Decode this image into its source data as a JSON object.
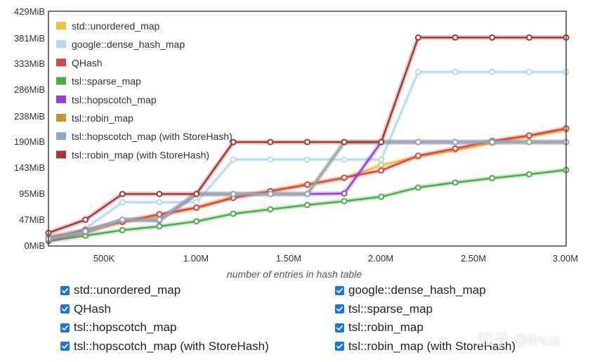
{
  "chart_data": {
    "type": "line",
    "xlabel": "number of entries in hash table",
    "ylabel": "",
    "xlim": [
      200000,
      3000000
    ],
    "ylim": [
      0,
      429
    ],
    "x_ticks": [
      500000,
      1000000,
      1500000,
      2000000,
      2500000,
      3000000
    ],
    "x_tick_labels": [
      "500K",
      "1.00M",
      "1.50M",
      "2.00M",
      "2.50M",
      "3.00M"
    ],
    "y_ticks": [
      0,
      47,
      95,
      143,
      190,
      238,
      286,
      333,
      381,
      429
    ],
    "y_tick_labels": [
      "0MiB",
      "47MiB",
      "95MiB",
      "143MiB",
      "190MiB",
      "238MiB",
      "286MiB",
      "333MiB",
      "381MiB",
      "429MiB"
    ],
    "grid": false,
    "legend_position": "top-left",
    "x": [
      200000,
      400000,
      600000,
      800000,
      1000000,
      1200000,
      1400000,
      1600000,
      1800000,
      2000000,
      2200000,
      2400000,
      2600000,
      2800000,
      3000000
    ],
    "series": [
      {
        "name": "std::unordered_map",
        "color": "#f0c040",
        "values": [
          18,
          28,
          45,
          55,
          70,
          90,
          101,
          113,
          124,
          148,
          163,
          175,
          188,
          200,
          212
        ]
      },
      {
        "name": "google::dense_hash_map",
        "color": "#b8d8f0",
        "values": [
          14,
          32,
          80,
          80,
          80,
          158,
          158,
          158,
          158,
          158,
          318,
          318,
          318,
          318,
          318
        ]
      },
      {
        "name": "QHash",
        "color": "#d04848",
        "values": [
          14,
          29,
          44,
          58,
          70,
          88,
          100,
          112,
          125,
          138,
          165,
          178,
          192,
          202,
          215
        ]
      },
      {
        "name": "tsl::sparse_map",
        "color": "#50a850",
        "values": [
          9,
          19,
          29,
          36,
          45,
          59,
          67,
          75,
          82,
          90,
          107,
          116,
          124,
          131,
          139
        ]
      },
      {
        "name": "tsl::hopscotch_map",
        "color": "#9040e0",
        "values": [
          10,
          25,
          48,
          47,
          95,
          95,
          95,
          95,
          96,
          190,
          190,
          190,
          190,
          190,
          190
        ]
      },
      {
        "name": "tsl::robin_map",
        "color": "#c09830",
        "values": [
          12,
          25,
          47,
          48,
          95,
          95,
          95,
          95,
          190,
          190,
          190,
          190,
          190,
          190,
          190
        ]
      },
      {
        "name": "tsl::hopscotch_map (with StoreHash)",
        "color": "#8ca8c4",
        "values": [
          13,
          27,
          48,
          48,
          95,
          95,
          95,
          95,
          190,
          190,
          190,
          190,
          190,
          190,
          190
        ]
      },
      {
        "name": "tsl::robin_map (with StoreHash)",
        "color": "#a03838",
        "values": [
          24,
          48,
          95,
          95,
          95,
          190,
          190,
          190,
          190,
          190,
          381,
          381,
          381,
          381,
          381
        ]
      }
    ]
  },
  "toggles": [
    {
      "label": "std::unordered_map",
      "checked": true
    },
    {
      "label": "google::dense_hash_map",
      "checked": true
    },
    {
      "label": "QHash",
      "checked": true
    },
    {
      "label": "tsl::sparse_map",
      "checked": true
    },
    {
      "label": "tsl::hopscotch_map",
      "checked": true
    },
    {
      "label": "tsl::robin_map",
      "checked": true
    },
    {
      "label": "tsl::hopscotch_map (with StoreHash)",
      "checked": true
    },
    {
      "label": "tsl::robin_map (with StoreHash)",
      "checked": true
    }
  ],
  "watermark": "知乎 @linux"
}
